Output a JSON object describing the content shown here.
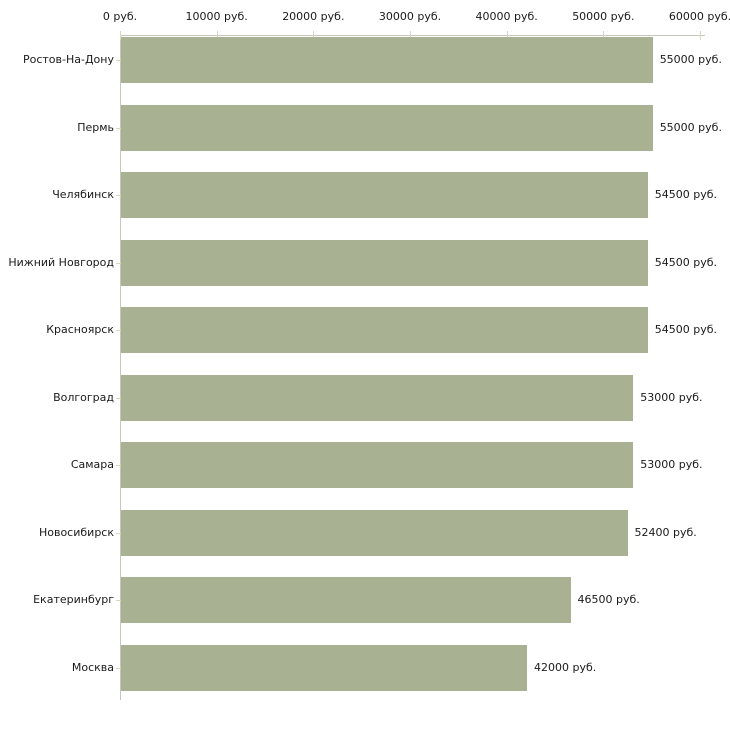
{
  "chart_data": {
    "type": "bar",
    "orientation": "horizontal",
    "title": "",
    "categories": [
      "Ростов-На-Дону",
      "Пермь",
      "Челябинск",
      "Нижний Новгород",
      "Красноярск",
      "Волгоград",
      "Самара",
      "Новосибирск",
      "Екатеринбург",
      "Москва"
    ],
    "values": [
      55000,
      55000,
      54500,
      54500,
      54500,
      53000,
      53000,
      52400,
      46500,
      42000
    ],
    "value_labels": [
      "55000 руб.",
      "55000 руб.",
      "54500 руб.",
      "54500 руб.",
      "54500 руб.",
      "53000 руб.",
      "53000 руб.",
      "52400 руб.",
      "46500 руб.",
      "42000 руб."
    ],
    "x_axis": {
      "position": "top",
      "min": 0,
      "max": 60000,
      "tick_interval": 10000,
      "tick_values": [
        0,
        10000,
        20000,
        30000,
        40000,
        50000,
        60000
      ],
      "tick_labels": [
        "0 руб.",
        "10000 руб.",
        "20000 руб.",
        "30000 руб.",
        "40000 руб.",
        "50000 руб.",
        "60000 руб."
      ]
    },
    "grid": false,
    "legend": "none",
    "colors": {
      "bar": "#a9b193",
      "axis": "#c6c6bd",
      "tick": "#d9d7bd",
      "text": "#1a1a1a",
      "background": "#ffffff"
    }
  }
}
